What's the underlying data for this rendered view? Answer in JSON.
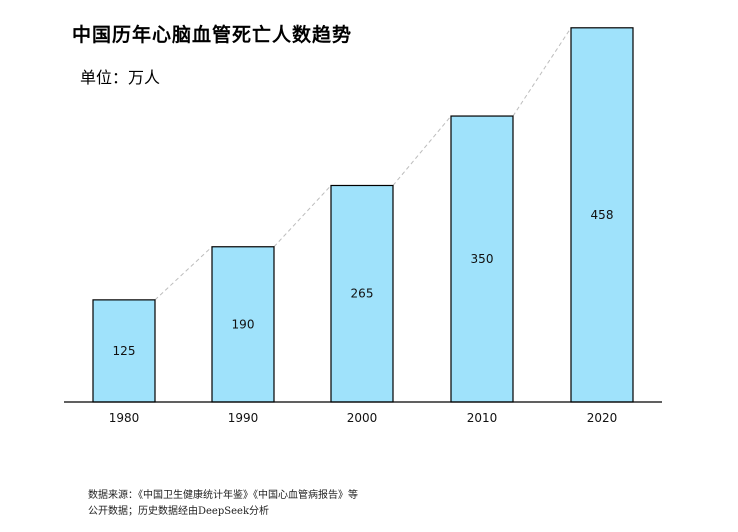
{
  "title": "中国历年心脑血管死亡人数趋势",
  "unit_label": "单位：万人",
  "source_line1": "数据来源：《中国卫生健康统计年鉴》《中国心血管病报告》等",
  "source_line2": "公开数据；历史数据经由DeepSeek分析",
  "chart_data": {
    "type": "bar",
    "categories": [
      "1980",
      "1990",
      "2000",
      "2010",
      "2020"
    ],
    "values": [
      125,
      190,
      265,
      350,
      458
    ],
    "data_labels": [
      "125",
      "190",
      "265",
      "350",
      "458"
    ],
    "title": "中国历年心脑血管死亡人数趋势",
    "unit": "单位：万人",
    "xlabel": "",
    "ylabel": "",
    "ylim": [
      0,
      470
    ],
    "grid": false,
    "trend_line": "dashed",
    "bar_color": "#9fe2fb",
    "bar_edge_color": "#000000",
    "trend_color": "#bdbdbd"
  }
}
